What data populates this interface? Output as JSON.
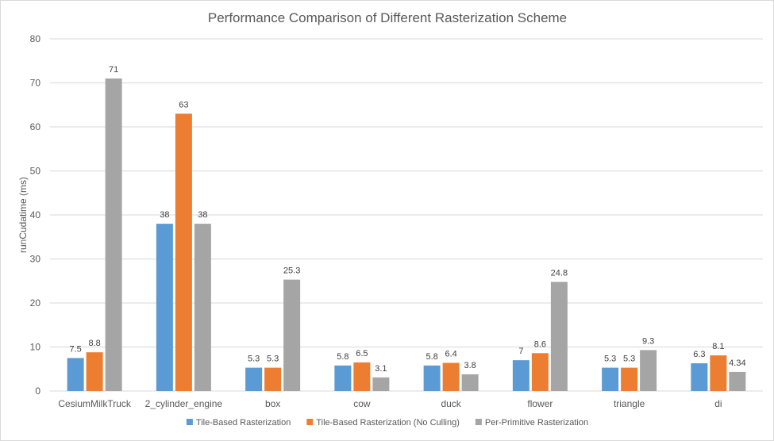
{
  "chart_data": {
    "type": "bar",
    "title": "Performance Comparison of Different Rasterization Scheme",
    "xlabel": "",
    "ylabel": "runCudatime (ms)",
    "ylim": [
      0,
      80
    ],
    "yticks": [
      0,
      10,
      20,
      30,
      40,
      50,
      60,
      70,
      80
    ],
    "grid": true,
    "legend_position": "bottom",
    "categories": [
      "CesiumMilkTruck",
      "2_cylinder_engine",
      "box",
      "cow",
      "duck",
      "flower",
      "triangle",
      "di"
    ],
    "series": [
      {
        "name": "Tile-Based Rasterization",
        "color": "#5b9bd5",
        "values": [
          7.5,
          38,
          5.3,
          5.8,
          5.8,
          7,
          5.3,
          6.3
        ],
        "labels": [
          "7.5",
          "38",
          "5.3",
          "5.8",
          "5.8",
          "7",
          "5.3",
          "6.3"
        ]
      },
      {
        "name": "Tile-Based Rasterization (No Culling)",
        "color": "#ed7d31",
        "values": [
          8.8,
          63,
          5.3,
          6.5,
          6.4,
          8.6,
          5.3,
          8.1
        ],
        "labels": [
          "8.8",
          "63",
          "5.3",
          "6.5",
          "6.4",
          "8.6",
          "5.3",
          "8.1"
        ]
      },
      {
        "name": "Per-Primitive Rasterization",
        "color": "#a5a5a5",
        "values": [
          71,
          38,
          25.3,
          3.1,
          3.8,
          24.8,
          9.3,
          4.34
        ],
        "labels": [
          "71",
          "38",
          "25.3",
          "3.1",
          "3.8",
          "24.8",
          "9.3",
          "4.34"
        ]
      }
    ],
    "gridline_color": "#d9d9d9",
    "text_color": "#595959"
  }
}
